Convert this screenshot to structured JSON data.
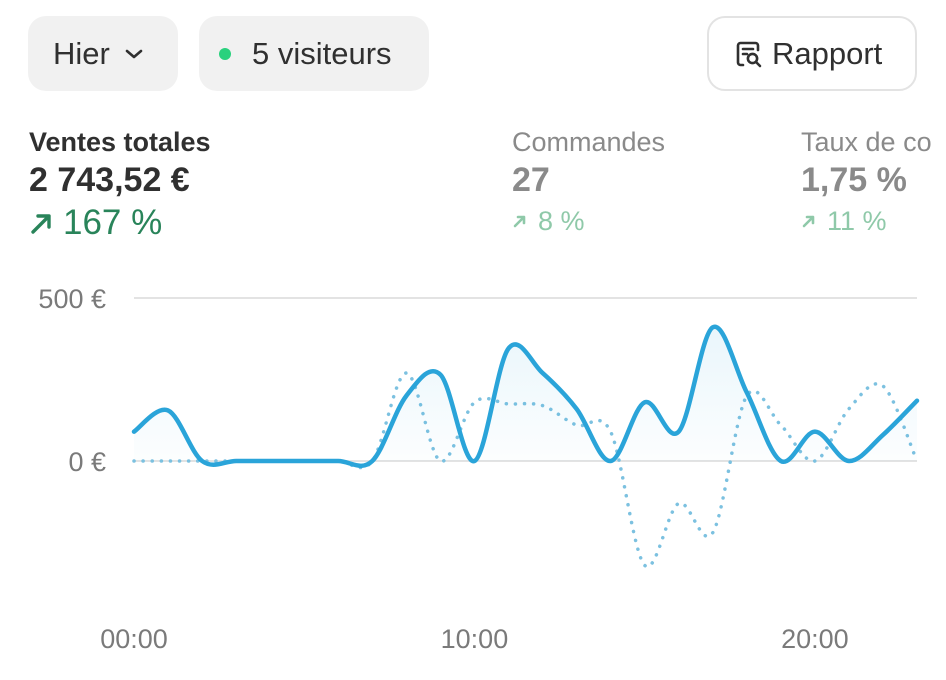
{
  "toolbar": {
    "date_label": "Hier",
    "visitors_label": "5 visiteurs",
    "report_label": "Rapport",
    "live_color": "#29d17d",
    "icons": [
      "chevron-down-icon",
      "report-search-icon"
    ]
  },
  "metrics": [
    {
      "label": "Ventes totales",
      "value": "2 743,52 €",
      "delta": "167 %",
      "direction": "up"
    },
    {
      "label": "Commandes",
      "value": "27",
      "delta": "8 %",
      "direction": "up"
    },
    {
      "label": "Taux de co",
      "value": "1,75 %",
      "delta": "11 %",
      "direction": "up"
    }
  ],
  "colors": {
    "accent": "#2aa4d9",
    "positive": "#29845a",
    "positive_muted": "#8fc9a9"
  },
  "chart_data": {
    "type": "line",
    "y_tick_labels": [
      "500 €",
      "0 €"
    ],
    "y_ticks": [
      500,
      0
    ],
    "x_tick_labels": [
      "00:00",
      "10:00",
      "20:00"
    ],
    "x_ticks": [
      0,
      10,
      20
    ],
    "xlim": [
      0,
      23
    ],
    "ylim": [
      -350,
      500
    ],
    "grid": "horizontal",
    "series": [
      {
        "style": "solid",
        "x": [
          0,
          1,
          2,
          3,
          4,
          5,
          6,
          7,
          8,
          9,
          10,
          11,
          12,
          13,
          14,
          15,
          16,
          17,
          18,
          19,
          20,
          21,
          22,
          23
        ],
        "y": [
          90,
          155,
          0,
          0,
          0,
          0,
          0,
          0,
          200,
          265,
          0,
          345,
          270,
          160,
          0,
          180,
          90,
          410,
          210,
          0,
          90,
          0,
          80,
          185
        ]
      },
      {
        "style": "dotted",
        "x": [
          0,
          1,
          2,
          3,
          4,
          5,
          6,
          7,
          8,
          9,
          10,
          11,
          12,
          13,
          14,
          15,
          16,
          17,
          18,
          19,
          20,
          21,
          22,
          23
        ],
        "y": [
          0,
          0,
          0,
          0,
          0,
          0,
          0,
          0,
          270,
          0,
          180,
          175,
          170,
          110,
          90,
          -320,
          -130,
          -220,
          200,
          110,
          0,
          160,
          230,
          0
        ]
      }
    ]
  }
}
